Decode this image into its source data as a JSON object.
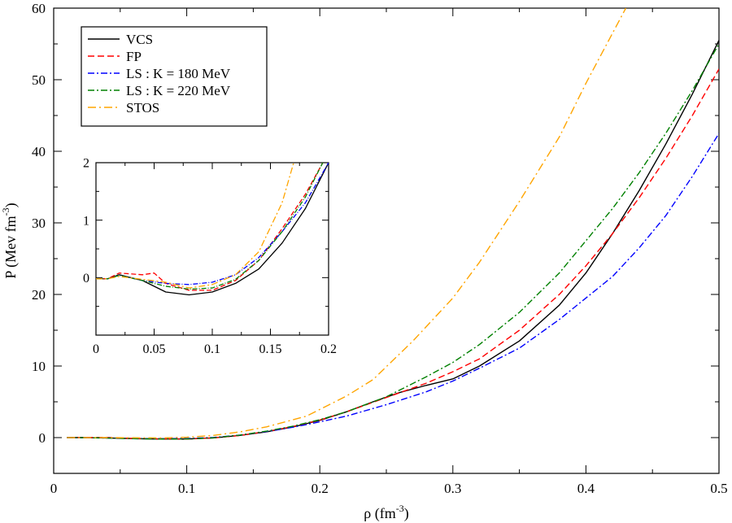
{
  "chart_data": [
    {
      "type": "line",
      "panel": "main",
      "title": "",
      "xlabel": "ρ (fm",
      "xlabel_sup": "-3",
      "xlabel_close": ")",
      "ylabel": "P (Mev fm",
      "ylabel_sup": "-3",
      "ylabel_close": ")",
      "xlim": [
        0,
        0.5
      ],
      "ylim": [
        -5,
        60
      ],
      "xticks": [
        0,
        0.1,
        0.2,
        0.3,
        0.4,
        0.5
      ],
      "xtick_labels": [
        "0",
        "0.1",
        "0.2",
        "0.3",
        "0.4",
        "0.5"
      ],
      "yticks": [
        0,
        10,
        20,
        30,
        40,
        50,
        60
      ],
      "ytick_labels": [
        "0",
        "10",
        "20",
        "30",
        "40",
        "50",
        "60"
      ],
      "grid": false,
      "legend_position": "top-left",
      "series": [
        {
          "name": "VCS",
          "color": "#000000",
          "dash": "solid",
          "x": [
            0.01,
            0.02,
            0.04,
            0.06,
            0.08,
            0.1,
            0.12,
            0.14,
            0.16,
            0.18,
            0.2,
            0.22,
            0.24,
            0.26,
            0.28,
            0.3,
            0.32,
            0.35,
            0.38,
            0.4,
            0.42,
            0.44,
            0.46,
            0.48,
            0.5
          ],
          "y": [
            0.0,
            0.0,
            -0.05,
            -0.15,
            -0.2,
            -0.2,
            -0.05,
            0.3,
            0.8,
            1.5,
            2.4,
            3.6,
            5.0,
            6.3,
            7.3,
            8.2,
            10.0,
            13.5,
            18.5,
            23.0,
            28.5,
            34.5,
            41.0,
            48.0,
            55.5
          ]
        },
        {
          "name": "FP",
          "color": "#ff0000",
          "dash": "8,4",
          "x": [
            0.01,
            0.02,
            0.04,
            0.06,
            0.08,
            0.1,
            0.12,
            0.14,
            0.16,
            0.18,
            0.2,
            0.22,
            0.25,
            0.28,
            0.3,
            0.32,
            0.35,
            0.38,
            0.4,
            0.42,
            0.44,
            0.46,
            0.48,
            0.5
          ],
          "y": [
            0.0,
            0.02,
            0.02,
            -0.12,
            -0.18,
            -0.18,
            -0.03,
            0.3,
            0.85,
            1.55,
            2.45,
            3.6,
            5.6,
            7.6,
            9.2,
            11.0,
            15.0,
            20.0,
            24.0,
            28.5,
            33.5,
            39.0,
            45.0,
            51.5
          ]
        },
        {
          "name": "LS : K = 180 MeV",
          "color": "#0000ff",
          "dash": "8,3,2,3",
          "x": [
            0.01,
            0.02,
            0.04,
            0.06,
            0.08,
            0.1,
            0.12,
            0.14,
            0.16,
            0.18,
            0.2,
            0.22,
            0.25,
            0.28,
            0.3,
            0.32,
            0.35,
            0.38,
            0.4,
            0.42,
            0.44,
            0.46,
            0.48,
            0.5
          ],
          "y": [
            0.0,
            0.0,
            -0.05,
            -0.12,
            -0.15,
            -0.12,
            0.02,
            0.35,
            0.85,
            1.45,
            2.2,
            3.0,
            4.6,
            6.4,
            7.9,
            9.7,
            12.5,
            16.5,
            19.5,
            22.5,
            26.5,
            31.0,
            36.5,
            42.5
          ]
        },
        {
          "name": "LS : K = 220 MeV",
          "color": "#008000",
          "dash": "8,3,2,3",
          "x": [
            0.01,
            0.02,
            0.04,
            0.06,
            0.08,
            0.1,
            0.12,
            0.14,
            0.16,
            0.18,
            0.2,
            0.22,
            0.25,
            0.28,
            0.3,
            0.32,
            0.35,
            0.38,
            0.4,
            0.42,
            0.44,
            0.46,
            0.48,
            0.5
          ],
          "y": [
            0.0,
            0.0,
            -0.06,
            -0.15,
            -0.2,
            -0.18,
            -0.03,
            0.35,
            0.9,
            1.6,
            2.5,
            3.6,
            5.7,
            8.5,
            10.5,
            13.0,
            17.5,
            23.0,
            27.5,
            32.0,
            37.0,
            42.5,
            48.5,
            55.0
          ]
        },
        {
          "name": "STOS",
          "color": "#ffa500",
          "dash": "10,4,2,4",
          "x": [
            0.01,
            0.02,
            0.04,
            0.06,
            0.08,
            0.1,
            0.12,
            0.14,
            0.16,
            0.19,
            0.22,
            0.24,
            0.27,
            0.3,
            0.32,
            0.35,
            0.38,
            0.4,
            0.42,
            0.43
          ],
          "y": [
            0.0,
            0.0,
            0.0,
            -0.03,
            -0.05,
            0.05,
            0.3,
            0.8,
            1.5,
            3.0,
            5.8,
            8.1,
            13.5,
            19.5,
            24.5,
            33.0,
            42.0,
            49.5,
            56.5,
            60.0
          ]
        }
      ]
    },
    {
      "type": "line",
      "panel": "inset",
      "xlim": [
        0,
        0.2
      ],
      "ylim": [
        -1,
        2
      ],
      "xticks": [
        0,
        0.05,
        0.1,
        0.15,
        0.2
      ],
      "xtick_labels": [
        "0",
        "0.05",
        "0.1",
        "0.15",
        "0.2"
      ],
      "yticks": [
        0,
        1,
        2
      ],
      "ytick_labels": [
        "0",
        "1",
        "2"
      ],
      "series": [
        {
          "name": "VCS",
          "color": "#000000",
          "dash": "solid",
          "x": [
            0.0,
            0.01,
            0.02,
            0.04,
            0.06,
            0.08,
            0.1,
            0.12,
            0.14,
            0.16,
            0.18,
            0.2
          ],
          "y": [
            -0.02,
            -0.02,
            0.05,
            -0.05,
            -0.25,
            -0.3,
            -0.25,
            -0.1,
            0.15,
            0.6,
            1.2,
            2.0
          ]
        },
        {
          "name": "FP",
          "color": "#ff0000",
          "dash": "6,3",
          "x": [
            0.0,
            0.01,
            0.02,
            0.04,
            0.05,
            0.06,
            0.08,
            0.1,
            0.12,
            0.14,
            0.16,
            0.18,
            0.195
          ],
          "y": [
            -0.02,
            -0.02,
            0.08,
            0.05,
            0.08,
            -0.1,
            -0.22,
            -0.22,
            -0.05,
            0.3,
            0.85,
            1.45,
            2.0
          ]
        },
        {
          "name": "LS : K = 180 MeV",
          "color": "#0000ff",
          "dash": "6,2,1,2",
          "x": [
            0.0,
            0.01,
            0.02,
            0.04,
            0.06,
            0.08,
            0.1,
            0.12,
            0.14,
            0.16,
            0.18,
            0.2
          ],
          "y": [
            -0.02,
            -0.02,
            0.04,
            -0.05,
            -0.1,
            -0.12,
            -0.08,
            0.05,
            0.35,
            0.8,
            1.3,
            2.0
          ]
        },
        {
          "name": "LS : K = 220 MeV",
          "color": "#008000",
          "dash": "6,2,1,2",
          "x": [
            0.0,
            0.01,
            0.02,
            0.04,
            0.06,
            0.08,
            0.1,
            0.12,
            0.14,
            0.16,
            0.18,
            0.195
          ],
          "y": [
            -0.02,
            -0.02,
            0.04,
            -0.05,
            -0.15,
            -0.2,
            -0.18,
            -0.03,
            0.3,
            0.8,
            1.4,
            2.0
          ]
        },
        {
          "name": "STOS",
          "color": "#ffa500",
          "dash": "8,3,2,3",
          "x": [
            0.0,
            0.01,
            0.02,
            0.04,
            0.06,
            0.08,
            0.1,
            0.12,
            0.14,
            0.16,
            0.17
          ],
          "y": [
            -0.02,
            -0.02,
            0.02,
            -0.03,
            -0.08,
            -0.18,
            -0.12,
            0.05,
            0.45,
            1.3,
            2.0
          ]
        }
      ]
    }
  ]
}
